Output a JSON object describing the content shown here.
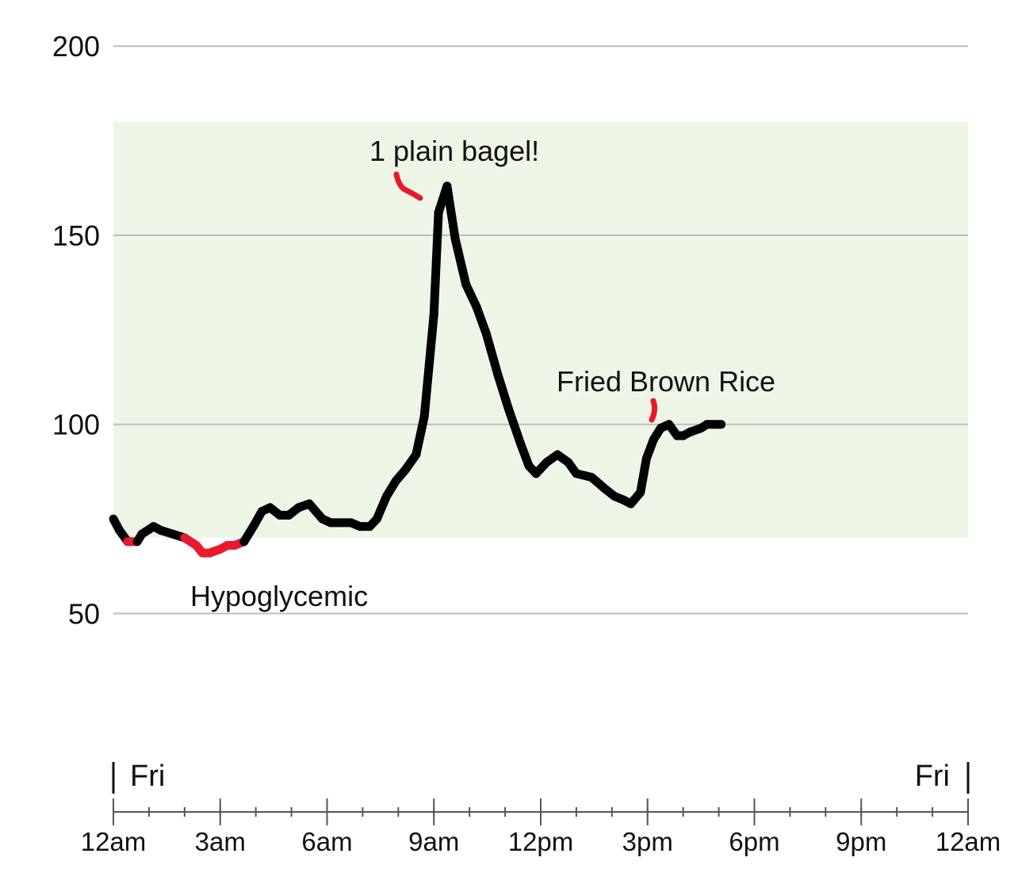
{
  "chart_data": {
    "type": "line",
    "title": "",
    "xlabel": "",
    "ylabel": "",
    "xlim": [
      0,
      24
    ],
    "ylim": [
      30,
      208
    ],
    "yticks": [
      50,
      100,
      150,
      200
    ],
    "xticks": [
      {
        "t": 0,
        "label": "12am"
      },
      {
        "t": 3,
        "label": "3am"
      },
      {
        "t": 6,
        "label": "6am"
      },
      {
        "t": 9,
        "label": "9am"
      },
      {
        "t": 12,
        "label": "12pm"
      },
      {
        "t": 15,
        "label": "3pm"
      },
      {
        "t": 18,
        "label": "6pm"
      },
      {
        "t": 21,
        "label": "9pm"
      },
      {
        "t": 24,
        "label": "12am"
      }
    ],
    "minor_tick_hours": 1,
    "day_labels": {
      "start": "Fri",
      "end": "Fri"
    },
    "target_range": [
      70,
      180
    ],
    "low_threshold": 70,
    "grid": true,
    "colors": {
      "line": "#000000",
      "low": "#e8192c",
      "range_fill": "#edf6e6",
      "grid": "#bcbcbc",
      "axis": "#555555"
    },
    "series": [
      {
        "x": [
          0,
          0.17,
          0.4,
          0.67,
          0.8,
          1.13,
          1.33,
          1.67,
          2.0,
          2.33,
          2.5,
          2.7,
          3.0,
          3.2,
          3.4,
          3.67,
          3.93,
          4.17,
          4.4,
          4.67,
          4.93,
          5.2,
          5.5,
          5.87,
          6.1,
          6.33,
          6.67,
          6.93,
          7.2,
          7.4,
          7.67,
          7.93,
          8.2,
          8.5,
          8.73,
          9.0,
          9.13,
          9.37,
          9.6,
          9.9,
          10.2,
          10.47,
          10.8,
          11.1,
          11.43,
          11.67,
          11.87,
          12.17,
          12.47,
          12.77,
          13.0,
          13.43,
          13.8,
          14.07,
          14.33,
          14.53,
          14.8,
          14.97,
          15.17,
          15.37,
          15.6,
          15.83,
          16.0,
          16.2,
          16.5,
          16.67,
          16.87,
          17.07
        ],
        "y": [
          75,
          72,
          69,
          69,
          71,
          73,
          72,
          71,
          70,
          68,
          66,
          66,
          67,
          68,
          68,
          69,
          73,
          77,
          78,
          76,
          76,
          78,
          79,
          75,
          74,
          74,
          74,
          73,
          73,
          75,
          81,
          85,
          88,
          92,
          102,
          129,
          156,
          163,
          149,
          137,
          131,
          124,
          113,
          104,
          95,
          89,
          87,
          90,
          92,
          90,
          87,
          86,
          83,
          81,
          80,
          79,
          82,
          91,
          96,
          99,
          100,
          97,
          97,
          98,
          99,
          100,
          100,
          100
        ]
      }
    ],
    "annotations": [
      {
        "text": "1 plain bagel!"
      },
      {
        "text": "Fried Brown Rice"
      },
      {
        "text": "Hypoglycemic"
      }
    ]
  }
}
